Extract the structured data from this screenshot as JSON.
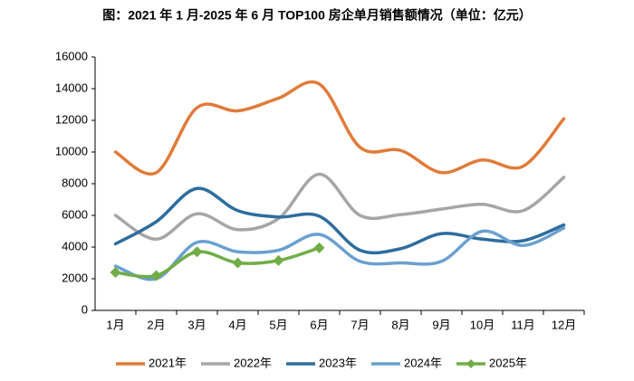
{
  "chart_data": {
    "type": "line",
    "title": "图：2021 年 1 月-2025 年 6 月 TOP100 房企单月销售额情况（单位：亿元）",
    "categories": [
      "1月",
      "2月",
      "3月",
      "4月",
      "5月",
      "6月",
      "7月",
      "8月",
      "9月",
      "10月",
      "11月",
      "12月"
    ],
    "series": [
      {
        "name": "2021年",
        "color": "#e07b39",
        "values": [
          10000,
          8700,
          12800,
          12600,
          13400,
          14300,
          10300,
          10100,
          8700,
          9500,
          9100,
          12100
        ]
      },
      {
        "name": "2022年",
        "color": "#a6a6a6",
        "values": [
          6000,
          4500,
          6100,
          5100,
          5800,
          8600,
          6000,
          6050,
          6400,
          6700,
          6300,
          8400
        ]
      },
      {
        "name": "2023年",
        "color": "#2e6d9e",
        "values": [
          4200,
          5600,
          7700,
          6300,
          5900,
          5950,
          3800,
          3900,
          4850,
          4500,
          4400,
          5400
        ]
      },
      {
        "name": "2024年",
        "color": "#6aa0d0",
        "values": [
          2800,
          2000,
          4300,
          3700,
          3800,
          4800,
          3100,
          3000,
          3100,
          5000,
          4100,
          5200
        ]
      },
      {
        "name": "2025年",
        "color": "#70ad47",
        "marker": "diamond",
        "values": [
          2400,
          2200,
          3700,
          3000,
          3150,
          3950,
          null,
          null,
          null,
          null,
          null,
          null
        ]
      }
    ],
    "ylim": [
      0,
      16000
    ],
    "yticks": [
      0,
      2000,
      4000,
      6000,
      8000,
      10000,
      12000,
      14000,
      16000
    ],
    "grid": false,
    "legend": "bottom"
  }
}
